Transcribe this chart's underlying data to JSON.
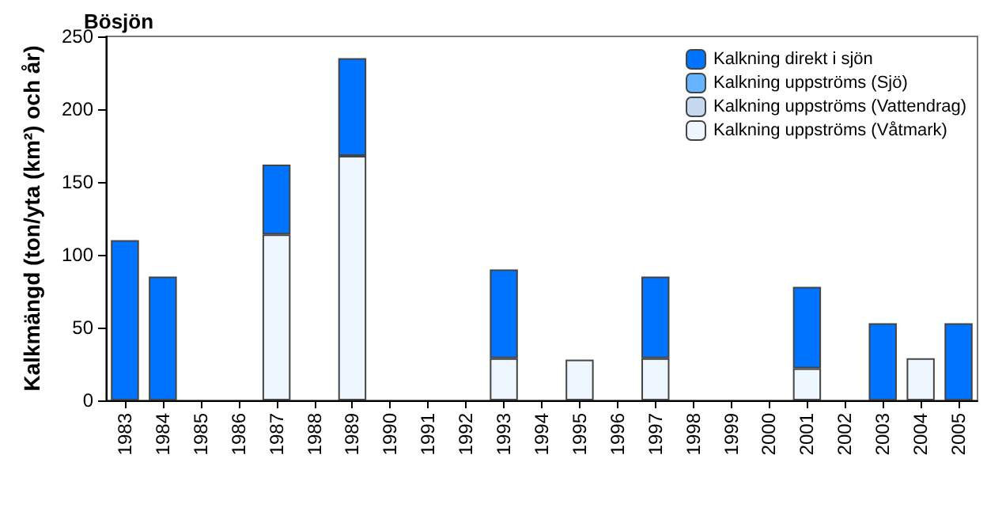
{
  "chart_data": {
    "type": "bar",
    "title": "Bösjön",
    "ylabel": "Kalkmängd (ton/yta (km²) och år)",
    "categories": [
      "1983",
      "1984",
      "1985",
      "1986",
      "1987",
      "1988",
      "1989",
      "1990",
      "1991",
      "1992",
      "1993",
      "1994",
      "1995",
      "1996",
      "1997",
      "1998",
      "1999",
      "2000",
      "2001",
      "2002",
      "2003",
      "2004",
      "2005"
    ],
    "stacked": true,
    "series": [
      {
        "name": "Kalkning uppströms (Våtmark)",
        "color": "#eef6ff",
        "values": [
          null,
          null,
          null,
          null,
          114,
          null,
          168,
          null,
          null,
          null,
          29,
          null,
          28,
          null,
          29,
          null,
          null,
          null,
          22,
          null,
          null,
          29,
          null
        ]
      },
      {
        "name": "Kalkning uppströms (Vattendrag)",
        "color": "#c6d9f0",
        "values": [
          null,
          null,
          null,
          null,
          null,
          null,
          null,
          null,
          null,
          null,
          null,
          null,
          null,
          null,
          null,
          null,
          null,
          null,
          null,
          null,
          null,
          null,
          null
        ]
      },
      {
        "name": "Kalkning uppströms (Sjö)",
        "color": "#66b3ff",
        "values": [
          null,
          null,
          null,
          null,
          null,
          null,
          null,
          null,
          null,
          null,
          null,
          null,
          null,
          null,
          null,
          null,
          null,
          null,
          null,
          null,
          null,
          null,
          null
        ]
      },
      {
        "name": "Kalkning direkt i sjön",
        "color": "#0073ff",
        "values": [
          110,
          85,
          null,
          null,
          48,
          null,
          67,
          null,
          null,
          null,
          61,
          null,
          null,
          null,
          56,
          null,
          null,
          null,
          56,
          null,
          53,
          null,
          53
        ]
      }
    ],
    "ylim": [
      0,
      250
    ],
    "yticks": [
      0,
      50,
      100,
      150,
      200,
      250
    ],
    "grid": false,
    "legend": "top right"
  }
}
